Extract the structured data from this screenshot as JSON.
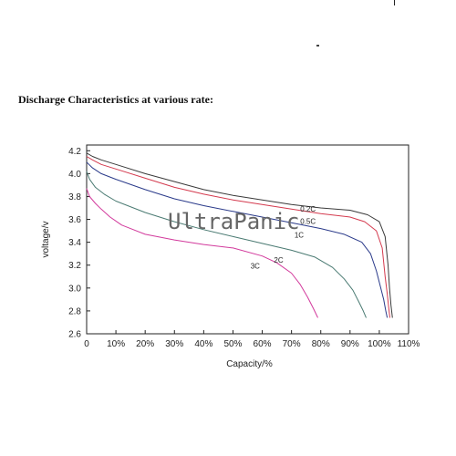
{
  "page": {
    "heading": "Discharge Characteristics at various rate:",
    "watermark": "UltraPanic"
  },
  "chart_data": {
    "type": "line",
    "title": "",
    "xlabel": "Capacity/%",
    "ylabel": "voltage/v",
    "xlim": [
      0,
      110
    ],
    "ylim": [
      2.6,
      4.25
    ],
    "x_ticks": [
      0,
      10,
      20,
      30,
      40,
      50,
      60,
      70,
      80,
      90,
      100,
      110
    ],
    "x_tick_labels": [
      "0",
      "10%",
      "20%",
      "30%",
      "40%",
      "50%",
      "60%",
      "70%",
      "80%",
      "90%",
      "100%",
      "110%"
    ],
    "y_ticks": [
      2.6,
      2.8,
      3.0,
      3.2,
      3.4,
      3.6,
      3.8,
      4.0,
      4.2
    ],
    "y_tick_labels": [
      "2.6",
      "2.8",
      "3.0",
      "3.2",
      "3.4",
      "3.6",
      "3.8",
      "4.0",
      "4.2"
    ],
    "grid": false,
    "legend": "none",
    "series": [
      {
        "name": "0.2C",
        "color": "#3a3a3a",
        "x": [
          0,
          2,
          5,
          10,
          20,
          30,
          40,
          50,
          60,
          70,
          80,
          90,
          96,
          100,
          102,
          103,
          103.5,
          104,
          104.5
        ],
        "y": [
          4.18,
          4.15,
          4.12,
          4.08,
          4.0,
          3.93,
          3.86,
          3.81,
          3.77,
          3.73,
          3.7,
          3.68,
          3.64,
          3.58,
          3.45,
          3.2,
          3.0,
          2.85,
          2.74
        ],
        "label_x": 73,
        "label_y": 3.67
      },
      {
        "name": "0.5C",
        "color": "#d43a4e",
        "x": [
          0,
          2,
          5,
          10,
          20,
          30,
          40,
          50,
          60,
          70,
          80,
          90,
          95,
          99,
          101,
          102,
          102.7,
          103.2,
          103.6
        ],
        "y": [
          4.15,
          4.12,
          4.08,
          4.04,
          3.96,
          3.88,
          3.82,
          3.77,
          3.73,
          3.69,
          3.65,
          3.62,
          3.58,
          3.5,
          3.35,
          3.1,
          2.95,
          2.83,
          2.74
        ],
        "label_x": 73,
        "label_y": 3.56
      },
      {
        "name": "1C",
        "color": "#2a3a8a",
        "x": [
          0,
          2,
          5,
          10,
          20,
          30,
          40,
          50,
          60,
          70,
          80,
          88,
          94,
          97,
          99,
          100.5,
          101.5,
          102.2,
          102.7
        ],
        "y": [
          4.1,
          4.05,
          4.0,
          3.95,
          3.86,
          3.78,
          3.72,
          3.67,
          3.62,
          3.57,
          3.52,
          3.47,
          3.4,
          3.3,
          3.15,
          3.0,
          2.9,
          2.8,
          2.74
        ],
        "label_x": 71,
        "label_y": 3.44
      },
      {
        "name": "2C",
        "color": "#4a7a72",
        "x": [
          0,
          1,
          3,
          6,
          10,
          20,
          30,
          40,
          50,
          60,
          70,
          78,
          84,
          88,
          91,
          93,
          94.5,
          95.5
        ],
        "y": [
          4.02,
          3.95,
          3.88,
          3.82,
          3.76,
          3.66,
          3.58,
          3.51,
          3.45,
          3.39,
          3.33,
          3.27,
          3.18,
          3.08,
          2.98,
          2.88,
          2.8,
          2.74
        ],
        "label_x": 64,
        "label_y": 3.22
      },
      {
        "name": "3C",
        "color": "#d23a9c",
        "x": [
          0,
          1,
          3,
          5,
          8,
          12,
          20,
          30,
          40,
          50,
          60,
          65,
          70,
          73,
          75.5,
          77.5,
          79
        ],
        "y": [
          3.87,
          3.8,
          3.74,
          3.69,
          3.62,
          3.55,
          3.47,
          3.42,
          3.38,
          3.35,
          3.28,
          3.22,
          3.13,
          3.03,
          2.92,
          2.82,
          2.74
        ],
        "label_x": 56,
        "label_y": 3.17
      }
    ]
  }
}
